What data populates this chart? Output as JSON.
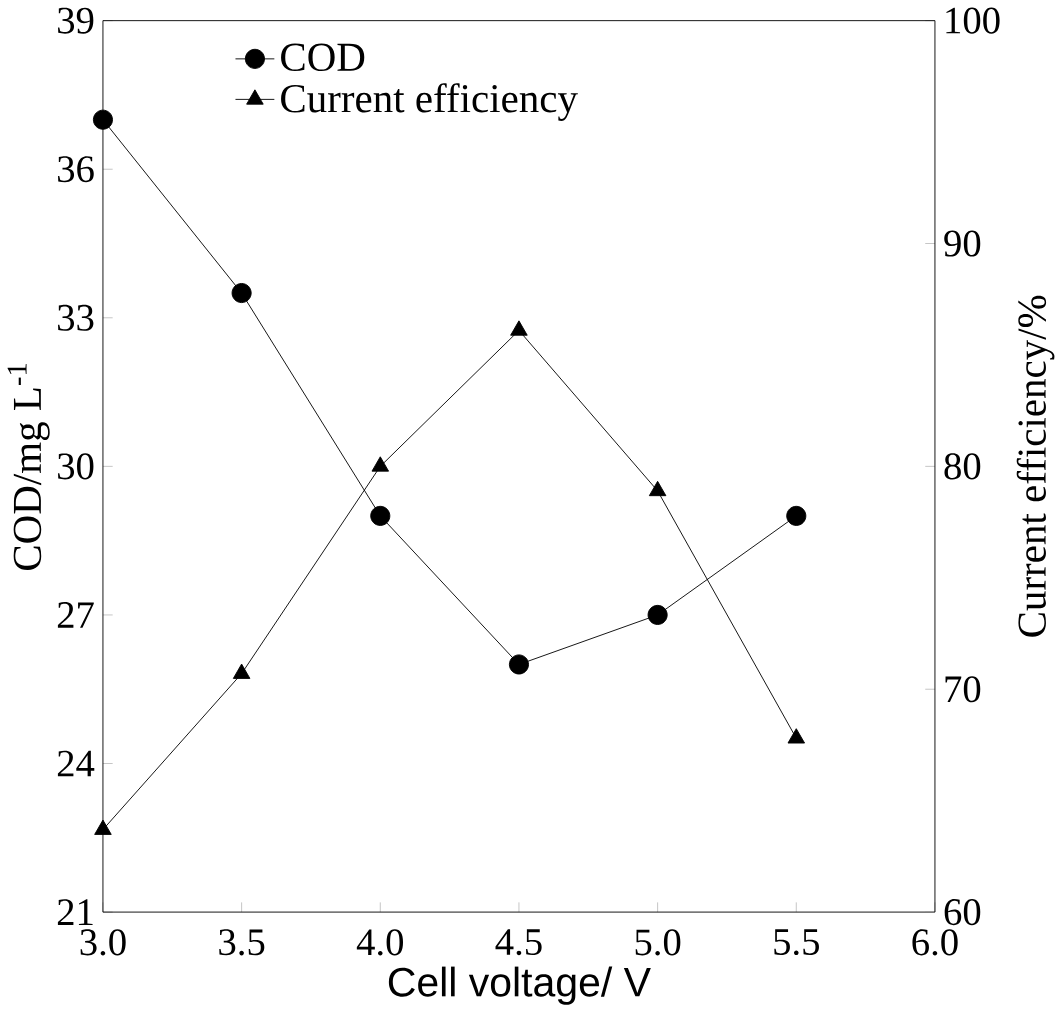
{
  "chart_data": {
    "type": "line",
    "xlabel": "Cell voltage/ V",
    "ylabel": "COD/mg L$^{-1}$",
    "y2label": "Current efficiency/%",
    "x": [
      3.0,
      3.5,
      4.0,
      4.5,
      5.0,
      5.5
    ],
    "series": [
      {
        "name": "COD",
        "color": "#000000",
        "marker": "circle",
        "values": [
          37,
          33.5,
          29,
          26,
          27,
          29
        ]
      },
      {
        "name": "Current efficiency",
        "color": "#000000",
        "marker": "triangle",
        "axis": "y2",
        "values": [
          63.7,
          70.7,
          80,
          86.1,
          78.9,
          67.8
        ]
      }
    ],
    "xlim": [
      3.0,
      6.0
    ],
    "xticks": [
      {
        "value": 3.0,
        "label": "3.0"
      },
      {
        "value": 3.5,
        "label": "3.5"
      },
      {
        "value": 4.0,
        "label": "4.0"
      },
      {
        "value": 4.5,
        "label": "4.5"
      },
      {
        "value": 5.0,
        "label": "5.0"
      },
      {
        "value": 5.5,
        "label": "5.5"
      },
      {
        "value": 6.0,
        "label": "6.0"
      }
    ],
    "ylim": [
      21,
      39
    ],
    "yticks": [
      21,
      24,
      27,
      30,
      33,
      36,
      39
    ],
    "y2lim": [
      60,
      100
    ],
    "y2ticks": [
      60,
      70,
      80,
      90,
      100
    ],
    "grid": false,
    "legend": "top left",
    "line_style": "solid"
  }
}
